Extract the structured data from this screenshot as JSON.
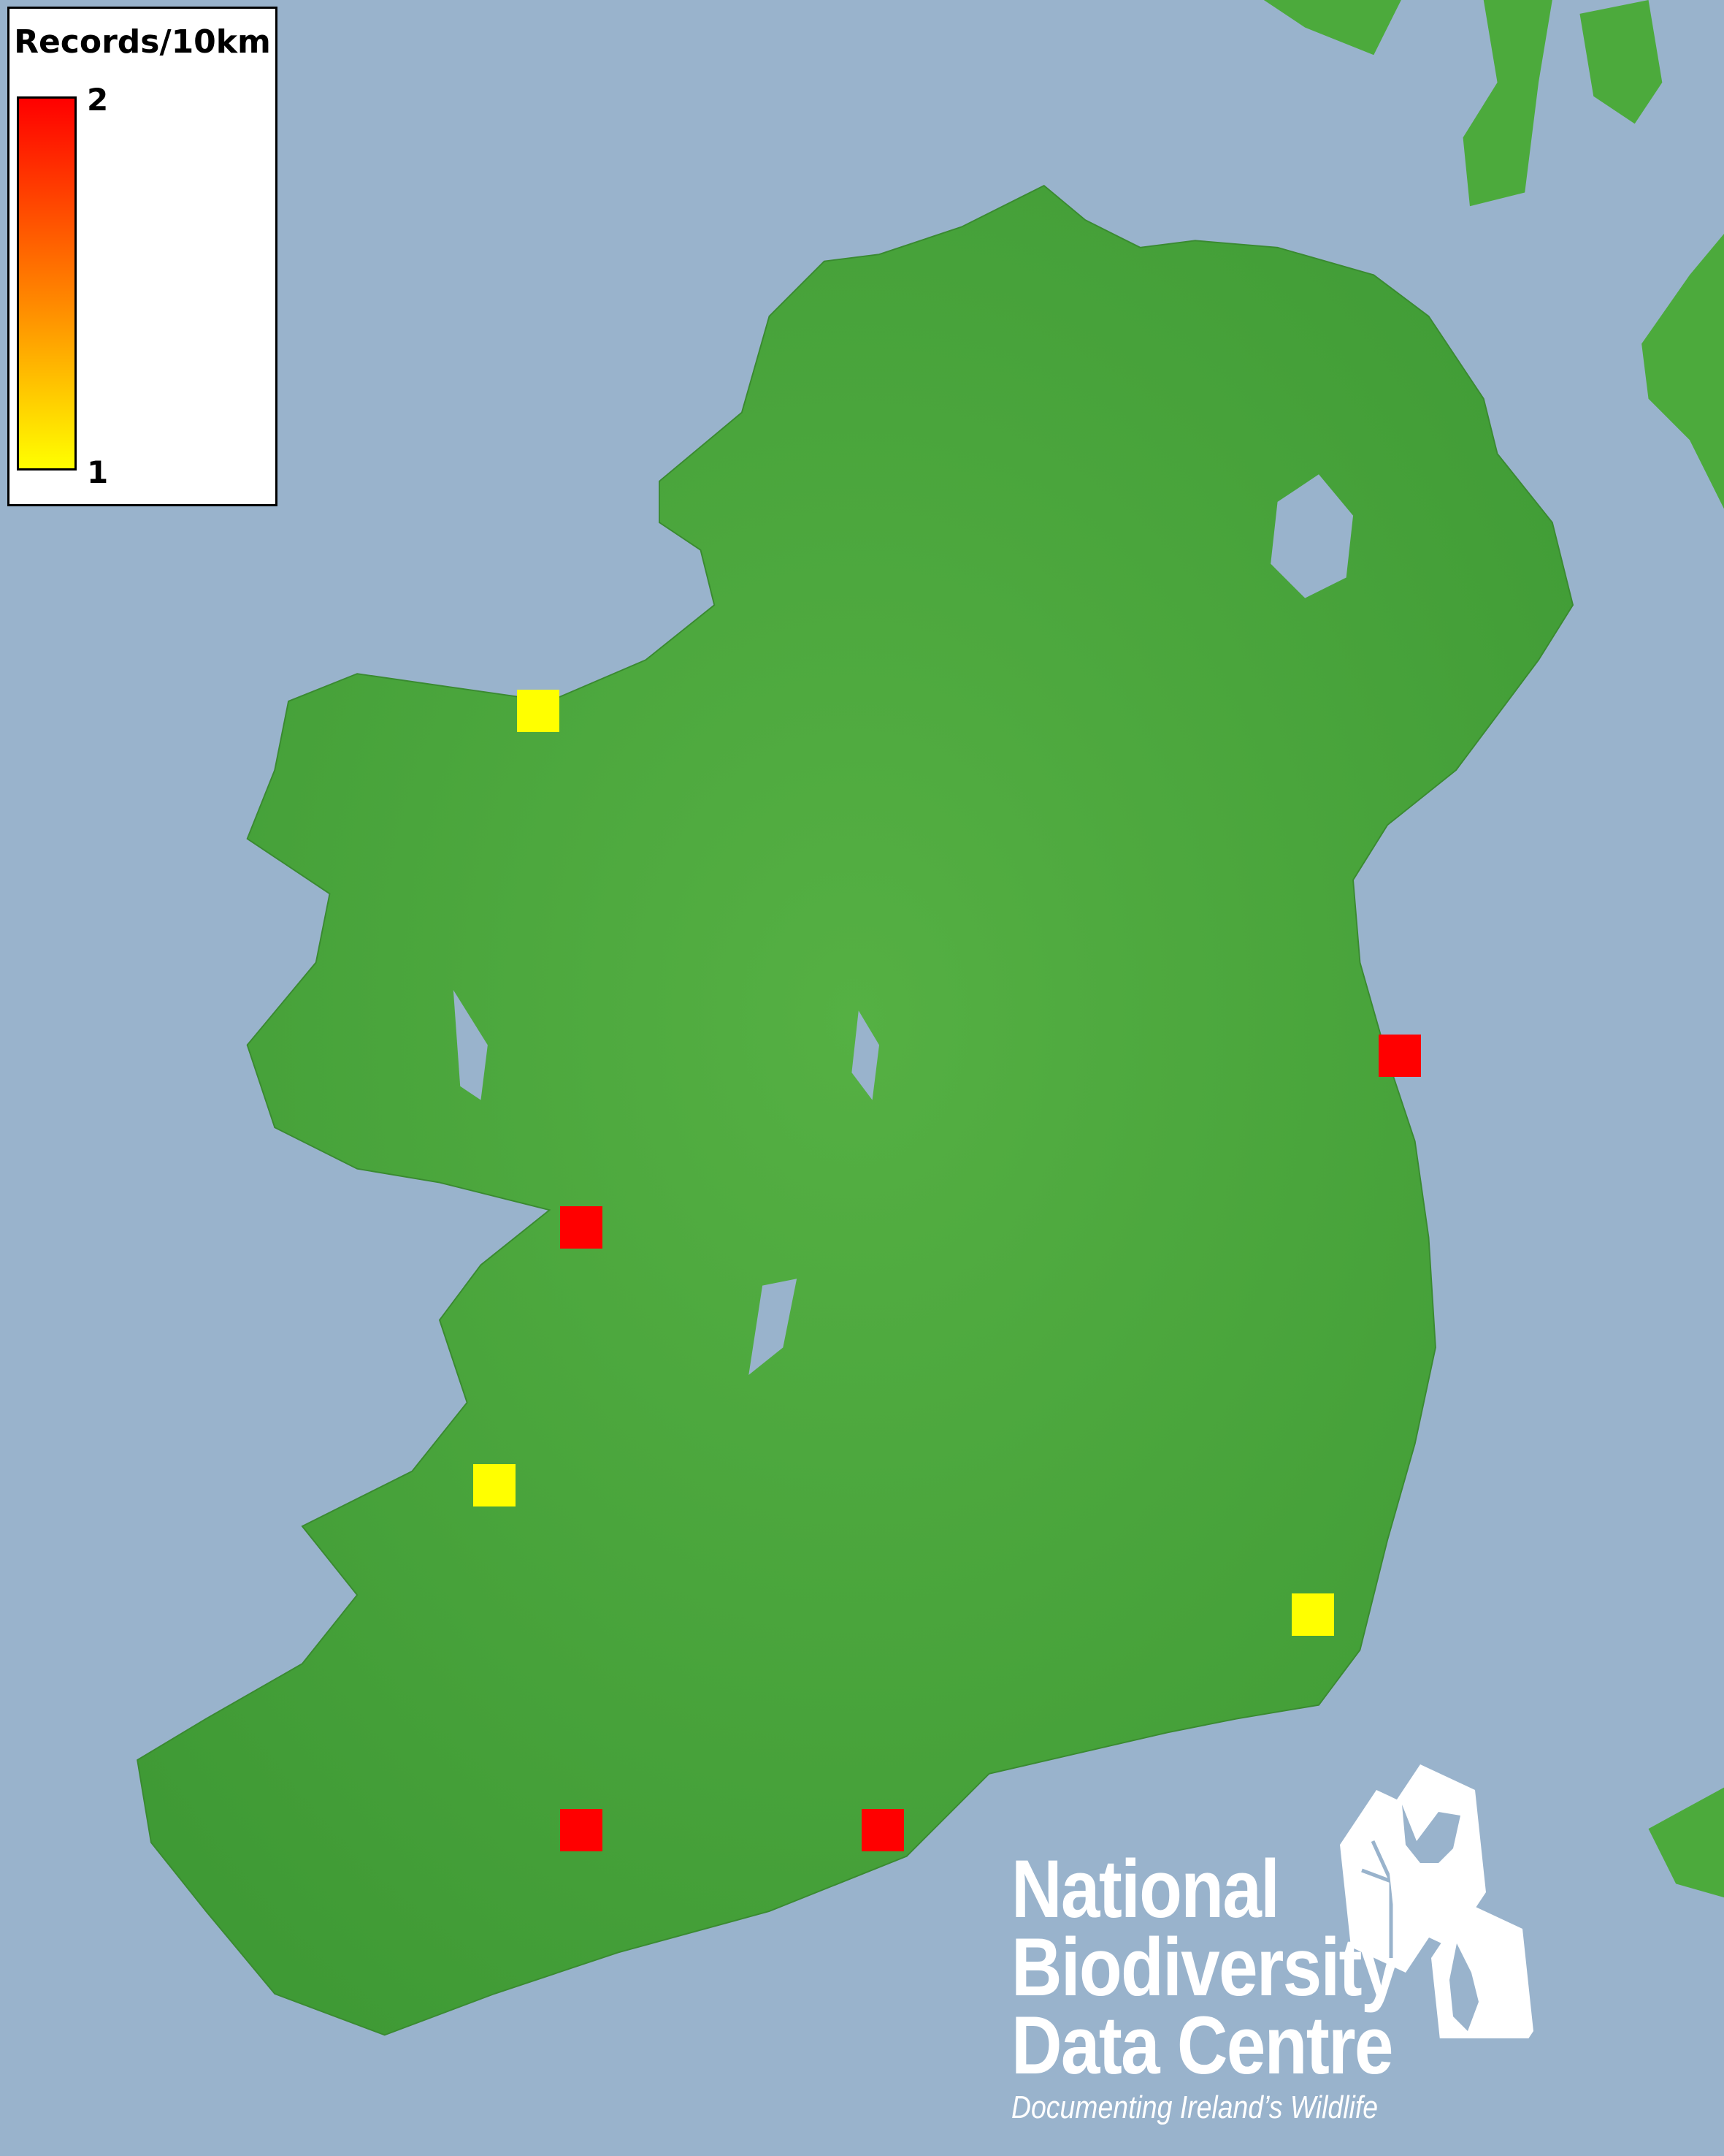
{
  "legend": {
    "title": "Records/10km",
    "max_label": "2",
    "min_label": "1",
    "color_max": "#ff0000",
    "color_min": "#ffff00"
  },
  "colors": {
    "sea": "#99b3cc",
    "land": "#4caa3c"
  },
  "records": [
    {
      "records": 1,
      "color": "#ffff00"
    },
    {
      "records": 2,
      "color": "#ff0000"
    },
    {
      "records": 2,
      "color": "#ff0000"
    },
    {
      "records": 1,
      "color": "#ffff00"
    },
    {
      "records": 1,
      "color": "#ffff00"
    },
    {
      "records": 2,
      "color": "#ff0000"
    },
    {
      "records": 2,
      "color": "#ff0000"
    }
  ],
  "logo": {
    "line1": "National",
    "line2": "Biodiversity",
    "line3": "Data Centre",
    "tagline": "Documenting Ireland’s Wildlife",
    "icons": [
      "tree-icon",
      "butterfly-icon",
      "seahorse-icon"
    ]
  }
}
